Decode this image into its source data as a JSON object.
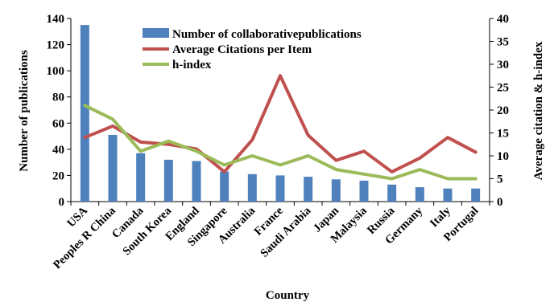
{
  "chart_data": {
    "type": "bar",
    "categories": [
      "USA",
      "Peoples R China",
      "Canada",
      "South Korea",
      "England",
      "Singapore",
      "Australia",
      "France",
      "Saudi Arabia",
      "Japan",
      "Malaysia",
      "Russia",
      "Germany",
      "Italy",
      "Portugal"
    ],
    "series": [
      {
        "name": "Number of collaborativepublications",
        "type": "bar",
        "axis": "left",
        "color": "#4f81bd",
        "values": [
          135,
          51,
          37,
          32,
          31,
          23,
          21,
          20,
          19,
          17,
          16,
          13,
          11,
          10,
          10
        ]
      },
      {
        "name": "Average Citations per Item",
        "type": "line",
        "axis": "right",
        "color": "#c0504d",
        "values": [
          14,
          16.5,
          13,
          12.5,
          11.5,
          6.5,
          13.5,
          27.5,
          14.5,
          9,
          11,
          6.5,
          9.5,
          14,
          10.8
        ]
      },
      {
        "name": "h-index",
        "type": "line",
        "axis": "right",
        "color": "#9bbb59",
        "values": [
          21,
          18,
          11,
          13.2,
          11,
          8,
          10,
          8,
          10,
          7,
          6,
          5,
          7,
          5,
          5
        ]
      }
    ],
    "xlabel": "Country",
    "ylabel": "Number of publications",
    "y2label": "Average citation & h-index",
    "ylim": [
      0,
      140
    ],
    "y2lim": [
      0,
      40
    ],
    "yticks": [
      0,
      20,
      40,
      60,
      80,
      100,
      120,
      140
    ],
    "y2ticks": [
      0,
      5,
      10,
      15,
      20,
      25,
      30,
      35,
      40
    ],
    "grid": false,
    "legend_position": "top-center"
  }
}
